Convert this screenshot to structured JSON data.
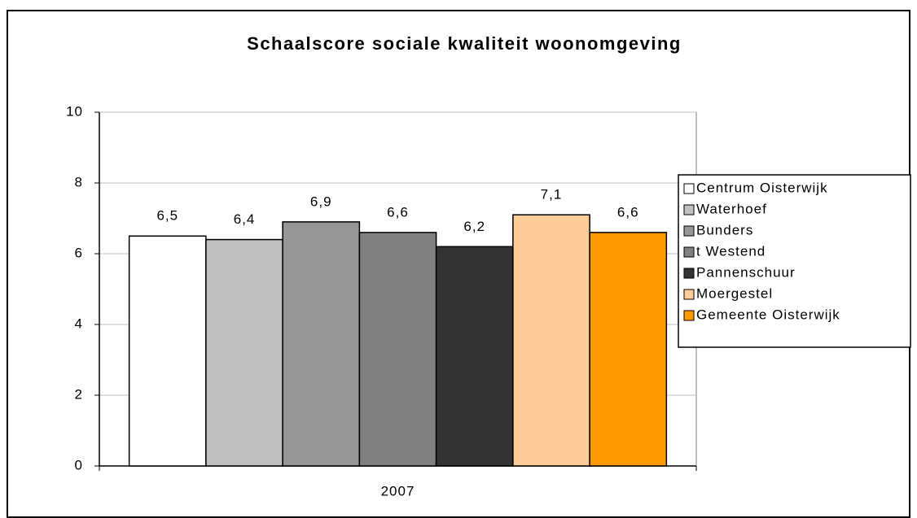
{
  "chart_data": {
    "type": "bar",
    "title": "Schaalscore sociale kwaliteit woonomgeving",
    "categories": [
      "2007"
    ],
    "series": [
      {
        "name": "Centrum Oisterwijk",
        "color": "#ffffff",
        "values": [
          6.5
        ],
        "value_labels": [
          "6,5"
        ]
      },
      {
        "name": "Waterhoef",
        "color": "#c0c0c0",
        "values": [
          6.4
        ],
        "value_labels": [
          "6,4"
        ]
      },
      {
        "name": "Bunders",
        "color": "#969696",
        "values": [
          6.9
        ],
        "value_labels": [
          "6,9"
        ]
      },
      {
        "name": "t Westend",
        "color": "#808080",
        "values": [
          6.6
        ],
        "value_labels": [
          "6,6"
        ]
      },
      {
        "name": "Pannenschuur",
        "color": "#333333",
        "values": [
          6.2
        ],
        "value_labels": [
          "6,2"
        ]
      },
      {
        "name": "Moergestel",
        "color": "#ffcc99",
        "values": [
          7.1
        ],
        "value_labels": [
          "7,1"
        ]
      },
      {
        "name": "Gemeente Oisterwijk",
        "color": "#ff9900",
        "values": [
          6.6
        ],
        "value_labels": [
          "6,6"
        ]
      }
    ],
    "ylim": [
      0,
      10
    ],
    "yticks": [
      0,
      2,
      4,
      6,
      8,
      10
    ],
    "grid": true,
    "legend": "right"
  }
}
